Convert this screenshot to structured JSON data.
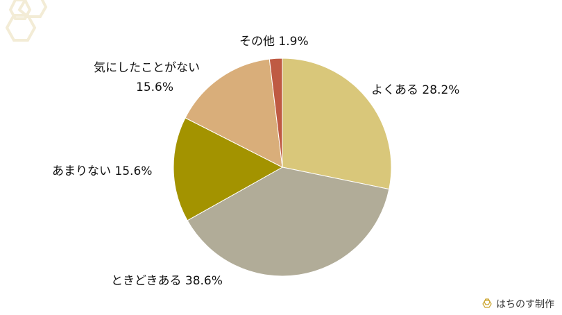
{
  "chart_data": {
    "type": "pie",
    "start": "top",
    "direction": "clockwise",
    "slices": [
      {
        "label": "よくある",
        "value": 28.2,
        "display": "28.2%",
        "color": "#d9c77a"
      },
      {
        "label": "ときどきある",
        "value": 38.6,
        "display": "38.6%",
        "color": "#b1ac98"
      },
      {
        "label": "あまりない",
        "value": 15.6,
        "display": "15.6%",
        "color": "#a39300"
      },
      {
        "label": "気にしたことがない",
        "value": 15.6,
        "display": "15.6%",
        "color": "#d9ae7a"
      },
      {
        "label": "その他",
        "value": 1.9,
        "display": "1.9%",
        "color": "#bf5a43"
      }
    ]
  },
  "footer": {
    "credit": "はちのす制作"
  },
  "logo_color": "#f3ecd6"
}
